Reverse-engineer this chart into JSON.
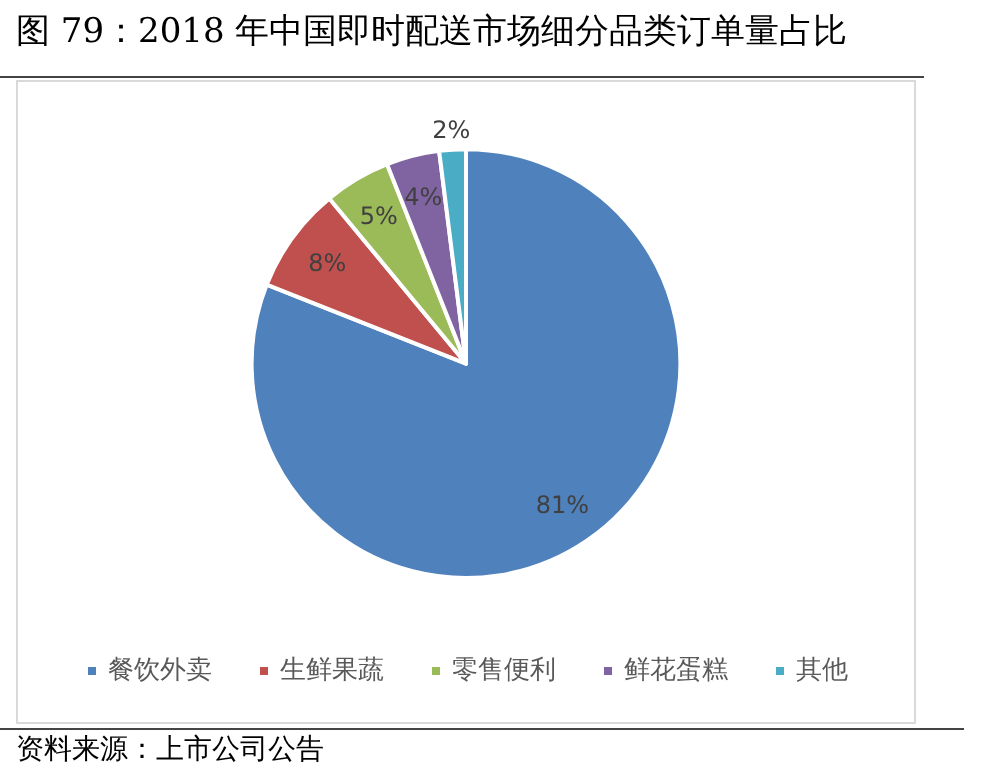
{
  "chart_data": {
    "type": "pie",
    "title": "图 79：2018 年中国即时配送市场细分品类订单量占比",
    "categories": [
      "餐饮外卖",
      "生鲜果蔬",
      "零售便利",
      "鲜花蛋糕",
      "其他"
    ],
    "values": [
      81,
      8,
      5,
      4,
      2
    ],
    "colors": [
      "#4f81bd",
      "#c0504d",
      "#9bbb59",
      "#8064a2",
      "#4bacc6"
    ],
    "value_labels": [
      "81%",
      "8%",
      "5%",
      "4%",
      "2%"
    ],
    "legend": "bottom",
    "annotations": [
      "资料来源：上市公司公告"
    ]
  }
}
